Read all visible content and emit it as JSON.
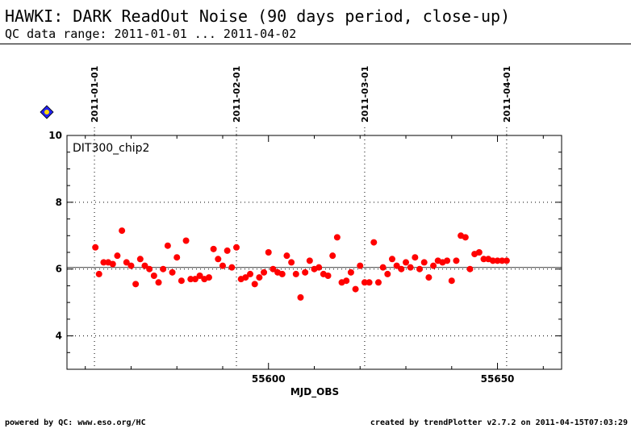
{
  "header": {
    "title": "HAWKI: DARK ReadOut Noise (90 days period, close-up)",
    "subtitle": "QC data range: 2011-01-01 ... 2011-04-02"
  },
  "footer": {
    "left": "powered by QC: www.eso.org/HC",
    "right": "created by trendPlotter v2.7.2 on 2011-04-15T07:03:29"
  },
  "chart_data": {
    "type": "scatter",
    "panel_label": "DIT300_chip2",
    "xlabel": "MJD_OBS",
    "ylabel": "",
    "xlim": [
      55556,
      55664
    ],
    "ylim": [
      3,
      10
    ],
    "x_ticks": [
      55600,
      55650
    ],
    "y_ticks": [
      4,
      6,
      8,
      10
    ],
    "reference_line": 6.05,
    "grid": "dotted",
    "marker_color": "#ff0000",
    "date_lines": [
      {
        "label": "2011-01-01",
        "x": 55562
      },
      {
        "label": "2011-02-01",
        "x": 55593
      },
      {
        "label": "2011-03-01",
        "x": 55621
      },
      {
        "label": "2011-04-01",
        "x": 55652
      }
    ],
    "series": [
      {
        "x": [
          55562.2,
          55563,
          55564,
          55565,
          55566,
          55567,
          55568,
          55569,
          55570,
          55571,
          55572,
          55573,
          55574,
          55575,
          55576,
          55577,
          55578,
          55579,
          55580,
          55581,
          55582,
          55583,
          55584,
          55585,
          55586,
          55587,
          55588,
          55589,
          55590,
          55591,
          55592,
          55593,
          55594,
          55595,
          55596,
          55597,
          55598,
          55599,
          55600,
          55601,
          55602,
          55603,
          55604,
          55605,
          55606,
          55607,
          55608,
          55609,
          55610,
          55611,
          55612,
          55613,
          55614,
          55615,
          55616,
          55617,
          55618,
          55619,
          55620,
          55621,
          55622,
          55623,
          55624,
          55625,
          55626,
          55627,
          55628,
          55629,
          55630,
          55631,
          55632,
          55633,
          55634,
          55635,
          55636,
          55637,
          55638,
          55639,
          55640,
          55641,
          55642,
          55643,
          55644,
          55645,
          55646,
          55647,
          55648,
          55649,
          55650,
          55651,
          55652
        ],
        "y": [
          6.65,
          5.85,
          6.2,
          6.2,
          6.15,
          6.4,
          7.15,
          6.2,
          6.1,
          5.55,
          6.3,
          6.1,
          6.0,
          5.8,
          5.6,
          6.0,
          6.7,
          5.9,
          6.35,
          5.65,
          6.85,
          5.7,
          5.7,
          5.8,
          5.7,
          5.75,
          6.6,
          6.3,
          6.1,
          6.55,
          6.05,
          6.65,
          5.7,
          5.75,
          5.85,
          5.55,
          5.75,
          5.9,
          6.5,
          6.0,
          5.9,
          5.85,
          6.4,
          6.2,
          5.85,
          5.15,
          5.9,
          6.25,
          6.0,
          6.05,
          5.85,
          5.8,
          6.4,
          6.95,
          5.6,
          5.65,
          5.9,
          5.4,
          6.1,
          5.6,
          5.6,
          6.8,
          5.6,
          6.05,
          5.85,
          6.3,
          6.1,
          6.0,
          6.2,
          6.05,
          6.35,
          6.0,
          6.2,
          5.75,
          6.1,
          6.25,
          6.2,
          6.25,
          5.65,
          6.25,
          7.0,
          6.95,
          6.0,
          6.45,
          6.5,
          6.3,
          6.3,
          6.25,
          6.25,
          6.25,
          6.25
        ]
      }
    ]
  }
}
